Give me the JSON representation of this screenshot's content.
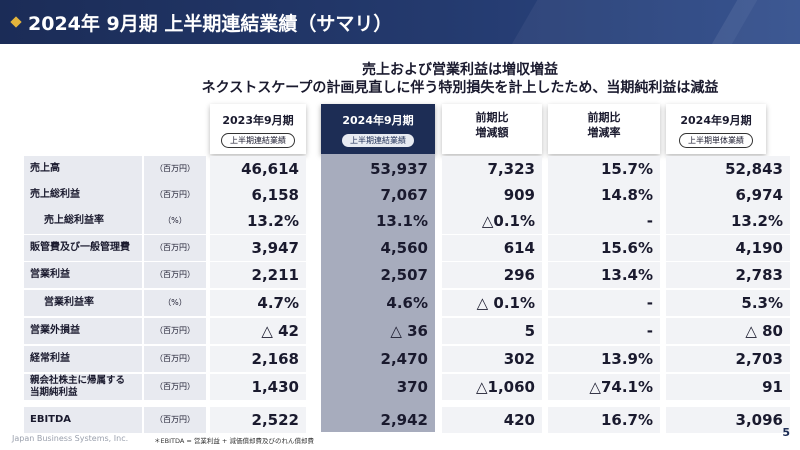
{
  "header": {
    "title": "2024年 9月期 上半期連結業績（サマリ）"
  },
  "subtitle": {
    "line1": "売上および営業利益は増収増益",
    "line2": "ネクストスケープの計画見直しに伴う特別損失を計上したため、当期純利益は減益"
  },
  "columns": [
    {
      "label": "2023年9月期",
      "pill": "上半期連結業績"
    },
    {
      "label": "2024年9月期",
      "pill": "上半期連結業績"
    },
    {
      "label": "前期比\n増減額",
      "pill": ""
    },
    {
      "label": "前期比\n増減率",
      "pill": ""
    },
    {
      "label": "2024年9月期",
      "pill": "上半期単体業績"
    }
  ],
  "rows": [
    {
      "label": "売上高",
      "unit": "（百万円）",
      "values": [
        "46,614",
        "53,937",
        "7,323",
        "15.7%",
        "52,843"
      ]
    },
    {
      "label": "売上総利益",
      "unit": "（百万円）",
      "values": [
        "6,158",
        "7,067",
        "909",
        "14.8%",
        "6,974"
      ]
    },
    {
      "label": "売上総利益率",
      "unit": "（%）",
      "values": [
        "13.2%",
        "13.1%",
        "△0.1%",
        "-",
        "13.2%"
      ]
    },
    {
      "label": "販管費及び一般管理費",
      "unit": "（百万円）",
      "values": [
        "3,947",
        "4,560",
        "614",
        "15.6%",
        "4,190"
      ]
    },
    {
      "label": "営業利益",
      "unit": "（百万円）",
      "values": [
        "2,211",
        "2,507",
        "296",
        "13.4%",
        "2,783"
      ]
    },
    {
      "label": "営業利益率",
      "unit": "（%）",
      "values": [
        "4.7%",
        "4.6%",
        "△ 0.1%",
        "-",
        "5.3%"
      ]
    },
    {
      "label": "営業外損益",
      "unit": "（百万円）",
      "values": [
        "△ 42",
        "△ 36",
        "5",
        "-",
        "△ 80"
      ]
    },
    {
      "label": "経常利益",
      "unit": "（百万円）",
      "values": [
        "2,168",
        "2,470",
        "302",
        "13.9%",
        "2,703"
      ]
    },
    {
      "label": "親会社株主に帰属する\n当期純利益",
      "unit": "（百万円）",
      "values": [
        "1,430",
        "370",
        "△1,060",
        "△74.1%",
        "91"
      ]
    },
    {
      "label": "EBITDA",
      "unit": "（百万円）",
      "values": [
        "2,522",
        "2,942",
        "420",
        "16.7%",
        "3,096"
      ]
    }
  ],
  "footer": {
    "company": "Japan Business Systems, Inc.",
    "note": "＊EBITDA = 営業利益 + 減価償却費及びのれん償却費",
    "page": "5"
  },
  "colors": {
    "header_bg": "#1b2c57",
    "accent": "#e3b43c",
    "current_column": "#1d2d55",
    "current_cells": "#a7acbd"
  }
}
